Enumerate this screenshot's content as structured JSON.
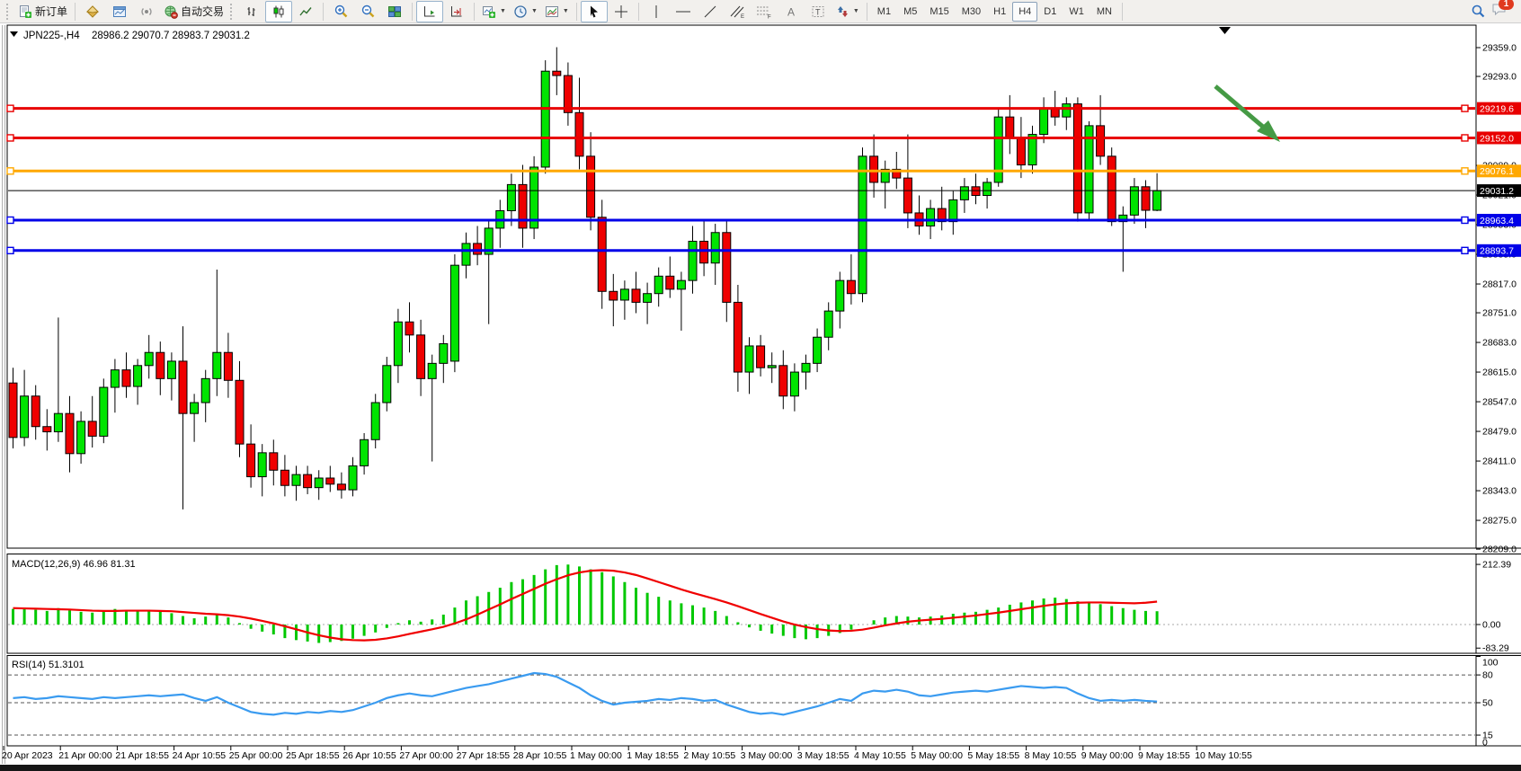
{
  "toolbar": {
    "new_order_label": "新订单",
    "auto_trading_label": "自动交易",
    "timeframes": [
      "M1",
      "M5",
      "M15",
      "M30",
      "H1",
      "H4",
      "D1",
      "W1",
      "MN"
    ],
    "active_timeframe": "H4",
    "notification_badge": "1"
  },
  "chart": {
    "title_symbol": "JPN225-,H4",
    "title_ohlc": "28986.2 29070.7 28983.7 29031.2",
    "bull_color": "#00e400",
    "bear_color": "#ef0000",
    "y_ticks": [
      29359.0,
      29293.0,
      29089.0,
      29021.0,
      28953.0,
      28885.0,
      28817.0,
      28751.0,
      28683.0,
      28615.0,
      28547.0,
      28479.0,
      28411.0,
      28343.0,
      28275.0,
      28209.0
    ],
    "levels": [
      {
        "price": 29219.6,
        "label": "29219.6",
        "color": "#e80000",
        "width": 3,
        "marker": true
      },
      {
        "price": 29152.0,
        "label": "29152.0",
        "color": "#e80000",
        "width": 3,
        "marker": true
      },
      {
        "price": 29076.1,
        "label": "29076.1",
        "color": "#ffa800",
        "width": 3,
        "marker": true
      },
      {
        "price": 29031.2,
        "label": "29031.2",
        "color": "#000000",
        "width": 1,
        "marker": false
      },
      {
        "price": 28963.4,
        "label": "28963.4",
        "color": "#0000e8",
        "width": 3,
        "marker": true
      },
      {
        "price": 28893.7,
        "label": "28893.7",
        "color": "#0000e8",
        "width": 3,
        "marker": true
      }
    ],
    "x_labels": [
      "20 Apr 2023",
      "21 Apr 00:00",
      "21 Apr 18:55",
      "24 Apr 10:55",
      "25 Apr 00:00",
      "25 Apr 18:55",
      "26 Apr 10:55",
      "27 Apr 00:00",
      "27 Apr 18:55",
      "28 Apr 10:55",
      "1 May 00:00",
      "1 May 18:55",
      "2 May 10:55",
      "3 May 00:00",
      "3 May 18:55",
      "4 May 10:55",
      "5 May 00:00",
      "5 May 18:55",
      "8 May 10:55",
      "9 May 00:00",
      "9 May 18:55",
      "10 May 10:55"
    ],
    "candles": [
      [
        28590,
        28625,
        28440,
        28465
      ],
      [
        28465,
        28620,
        28445,
        28560
      ],
      [
        28560,
        28585,
        28460,
        28490
      ],
      [
        28490,
        28530,
        28435,
        28478
      ],
      [
        28478,
        28740,
        28455,
        28520
      ],
      [
        28520,
        28560,
        28385,
        28428
      ],
      [
        28428,
        28525,
        28405,
        28502
      ],
      [
        28502,
        28560,
        28442,
        28468
      ],
      [
        28468,
        28600,
        28452,
        28580
      ],
      [
        28580,
        28645,
        28522,
        28620
      ],
      [
        28620,
        28660,
        28556,
        28582
      ],
      [
        28582,
        28645,
        28540,
        28630
      ],
      [
        28630,
        28700,
        28600,
        28660
      ],
      [
        28660,
        28685,
        28562,
        28600
      ],
      [
        28600,
        28660,
        28550,
        28640
      ],
      [
        28640,
        28720,
        28300,
        28520
      ],
      [
        28520,
        28565,
        28455,
        28545
      ],
      [
        28545,
        28620,
        28500,
        28600
      ],
      [
        28600,
        28850,
        28560,
        28660
      ],
      [
        28660,
        28705,
        28556,
        28596
      ],
      [
        28596,
        28640,
        28420,
        28450
      ],
      [
        28450,
        28495,
        28350,
        28375
      ],
      [
        28375,
        28450,
        28330,
        28430
      ],
      [
        28430,
        28460,
        28355,
        28390
      ],
      [
        28390,
        28425,
        28330,
        28355
      ],
      [
        28355,
        28400,
        28320,
        28380
      ],
      [
        28380,
        28400,
        28335,
        28350
      ],
      [
        28350,
        28390,
        28322,
        28372
      ],
      [
        28372,
        28400,
        28340,
        28358
      ],
      [
        28358,
        28385,
        28325,
        28345
      ],
      [
        28345,
        28420,
        28330,
        28400
      ],
      [
        28400,
        28475,
        28380,
        28460
      ],
      [
        28460,
        28565,
        28440,
        28545
      ],
      [
        28545,
        28650,
        28525,
        28630
      ],
      [
        28630,
        28760,
        28590,
        28730
      ],
      [
        28730,
        28775,
        28660,
        28700
      ],
      [
        28700,
        28735,
        28560,
        28600
      ],
      [
        28600,
        28655,
        28410,
        28635
      ],
      [
        28635,
        28700,
        28590,
        28680
      ],
      [
        28640,
        28885,
        28615,
        28860
      ],
      [
        28860,
        28935,
        28830,
        28910
      ],
      [
        28910,
        28950,
        28860,
        28885
      ],
      [
        28885,
        28965,
        28725,
        28945
      ],
      [
        28945,
        29010,
        28900,
        28985
      ],
      [
        28985,
        29070,
        28950,
        29045
      ],
      [
        29045,
        29090,
        28900,
        28945
      ],
      [
        28945,
        29110,
        28920,
        29085
      ],
      [
        29085,
        29330,
        29070,
        29305
      ],
      [
        29305,
        29360,
        29250,
        29295
      ],
      [
        29295,
        29325,
        29180,
        29210
      ],
      [
        29210,
        29290,
        29080,
        29110
      ],
      [
        29110,
        29165,
        28940,
        28970
      ],
      [
        28970,
        29010,
        28760,
        28800
      ],
      [
        28800,
        28840,
        28720,
        28780
      ],
      [
        28780,
        28825,
        28735,
        28805
      ],
      [
        28805,
        28845,
        28750,
        28775
      ],
      [
        28775,
        28820,
        28725,
        28795
      ],
      [
        28795,
        28855,
        28765,
        28835
      ],
      [
        28835,
        28880,
        28785,
        28805
      ],
      [
        28805,
        28845,
        28710,
        28825
      ],
      [
        28825,
        28950,
        28795,
        28915
      ],
      [
        28915,
        28965,
        28835,
        28865
      ],
      [
        28865,
        28955,
        28815,
        28935
      ],
      [
        28935,
        28965,
        28730,
        28775
      ],
      [
        28775,
        28815,
        28570,
        28615
      ],
      [
        28615,
        28695,
        28565,
        28675
      ],
      [
        28675,
        28700,
        28605,
        28625
      ],
      [
        28625,
        28660,
        28590,
        28630
      ],
      [
        28630,
        28665,
        28530,
        28560
      ],
      [
        28560,
        28635,
        28525,
        28615
      ],
      [
        28615,
        28655,
        28575,
        28635
      ],
      [
        28635,
        28715,
        28615,
        28695
      ],
      [
        28695,
        28775,
        28665,
        28755
      ],
      [
        28755,
        28845,
        28715,
        28825
      ],
      [
        28825,
        28885,
        28770,
        28795
      ],
      [
        28795,
        29130,
        28775,
        29110
      ],
      [
        29110,
        29160,
        29015,
        29050
      ],
      [
        29050,
        29100,
        28990,
        29080
      ],
      [
        29080,
        29120,
        29035,
        29060
      ],
      [
        29060,
        29160,
        28945,
        28980
      ],
      [
        28980,
        29020,
        28930,
        28950
      ],
      [
        28950,
        29010,
        28920,
        28990
      ],
      [
        28990,
        29040,
        28940,
        28960
      ],
      [
        28960,
        29030,
        28930,
        29010
      ],
      [
        29010,
        29060,
        28980,
        29040
      ],
      [
        29040,
        29070,
        29000,
        29020
      ],
      [
        29020,
        29060,
        28990,
        29050
      ],
      [
        29050,
        29220,
        29040,
        29200
      ],
      [
        29200,
        29250,
        29115,
        29150
      ],
      [
        29150,
        29200,
        29060,
        29090
      ],
      [
        29090,
        29180,
        29070,
        29160
      ],
      [
        29160,
        29245,
        29140,
        29220
      ],
      [
        29220,
        29260,
        29180,
        29200
      ],
      [
        29200,
        29245,
        29170,
        29230
      ],
      [
        29230,
        29245,
        28960,
        28980
      ],
      [
        28980,
        29190,
        28965,
        29180
      ],
      [
        29180,
        29250,
        29090,
        29110
      ],
      [
        29110,
        29130,
        28950,
        28960
      ],
      [
        28960,
        28995,
        28845,
        28975
      ],
      [
        28975,
        29060,
        28955,
        29040
      ],
      [
        29040,
        29055,
        28945,
        28986
      ],
      [
        28986,
        29071,
        28984,
        29031
      ]
    ]
  },
  "macd": {
    "label": "MACD(12,26,9) 46.96 81.31",
    "scale_ticks": [
      "212.39",
      "0.00",
      "-83.29"
    ],
    "histogram_color": "#00c800",
    "signal_color": "#f00000",
    "histogram": [
      55,
      60,
      52,
      48,
      58,
      50,
      45,
      42,
      50,
      55,
      50,
      48,
      52,
      45,
      40,
      30,
      22,
      28,
      35,
      25,
      5,
      -15,
      -25,
      -35,
      -48,
      -55,
      -60,
      -65,
      -62,
      -58,
      -50,
      -40,
      -28,
      -12,
      5,
      15,
      10,
      18,
      35,
      60,
      85,
      100,
      115,
      130,
      150,
      160,
      175,
      195,
      210,
      212,
      205,
      195,
      185,
      170,
      150,
      130,
      112,
      98,
      85,
      75,
      68,
      60,
      48,
      30,
      8,
      -10,
      -22,
      -32,
      -40,
      -48,
      -52,
      -48,
      -40,
      -30,
      -18,
      0,
      15,
      25,
      30,
      28,
      25,
      28,
      32,
      38,
      42,
      45,
      52,
      60,
      70,
      78,
      85,
      92,
      95,
      90,
      82,
      78,
      72,
      65,
      58,
      52,
      48,
      47
    ],
    "signal": [
      58,
      57,
      56,
      55,
      54,
      53,
      51,
      49,
      48,
      48,
      49,
      49,
      49,
      48,
      47,
      44,
      41,
      38,
      36,
      33,
      28,
      21,
      13,
      4,
      -6,
      -17,
      -28,
      -38,
      -46,
      -52,
      -55,
      -56,
      -54,
      -49,
      -42,
      -33,
      -25,
      -17,
      -8,
      4,
      18,
      35,
      53,
      71,
      90,
      108,
      126,
      144,
      160,
      174,
      184,
      190,
      192,
      190,
      184,
      175,
      163,
      150,
      137,
      124,
      112,
      101,
      90,
      78,
      65,
      51,
      37,
      24,
      11,
      0,
      -9,
      -16,
      -21,
      -23,
      -22,
      -18,
      -11,
      -3,
      4,
      10,
      14,
      17,
      20,
      24,
      28,
      32,
      37,
      42,
      48,
      54,
      60,
      66,
      71,
      75,
      77,
      78,
      78,
      77,
      76,
      75,
      77,
      81
    ]
  },
  "rsi": {
    "label": "RSI(14) 51.3101",
    "scale_ticks": [
      100,
      80,
      50,
      15,
      0
    ],
    "dashed_levels": [
      80,
      50,
      15
    ],
    "line_color": "#3a9bf0",
    "values": [
      55,
      56,
      54,
      55,
      57,
      56,
      55,
      54,
      56,
      55,
      56,
      57,
      58,
      57,
      58,
      59,
      55,
      52,
      56,
      50,
      45,
      40,
      38,
      37,
      39,
      38,
      40,
      39,
      41,
      40,
      42,
      46,
      50,
      55,
      58,
      60,
      58,
      57,
      60,
      63,
      66,
      68,
      70,
      73,
      76,
      79,
      82,
      81,
      78,
      72,
      66,
      58,
      52,
      48,
      50,
      51,
      52,
      54,
      53,
      55,
      54,
      52,
      53,
      48,
      44,
      40,
      38,
      39,
      37,
      40,
      43,
      46,
      50,
      54,
      52,
      60,
      63,
      62,
      64,
      62,
      58,
      57,
      59,
      61,
      62,
      63,
      62,
      64,
      66,
      68,
      67,
      66,
      67,
      66,
      60,
      55,
      52,
      53,
      52,
      53,
      52,
      51.3
    ]
  },
  "annotation": {
    "type": "down-arrow",
    "color": "#459a45"
  }
}
